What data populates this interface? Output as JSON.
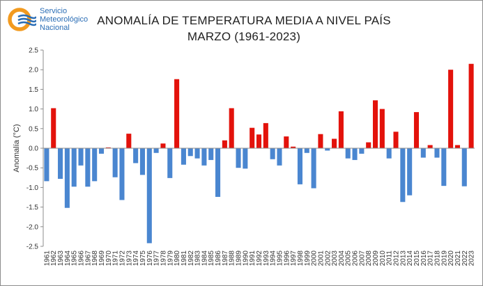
{
  "logo": {
    "text": "Servicio\nMeteorológico\nNacional",
    "colors": {
      "orange": "#f29a1f",
      "blue": "#2a6db5"
    }
  },
  "title_line1": "ANOMALÍA DE TEMPERATURA MEDIA A NIVEL PAÍS",
  "title_line2": "MARZO (1961-2023)",
  "chart_data": {
    "type": "bar",
    "title": "ANOMALÍA DE TEMPERATURA MEDIA A NIVEL PAÍS MARZO (1961-2023)",
    "xlabel": "",
    "ylabel": "Anomalía (°C)",
    "ylim": [
      -2.5,
      2.5
    ],
    "yticks": [
      "2.5",
      "2.0",
      "1.5",
      "1.0",
      "0.5",
      "0.0",
      "-0.5",
      "-1.0",
      "-1.5",
      "-2.0",
      "-2.5"
    ],
    "grid": false,
    "colors": {
      "positive": "#e3120b",
      "negative": "#4a86d0"
    },
    "categories": [
      "1961",
      "1962",
      "1963",
      "1964",
      "1965",
      "1966",
      "1967",
      "1968",
      "1969",
      "1970",
      "1971",
      "1972",
      "1973",
      "1974",
      "1975",
      "1976",
      "1977",
      "1978",
      "1979",
      "1980",
      "1981",
      "1982",
      "1983",
      "1984",
      "1985",
      "1986",
      "1987",
      "1988",
      "1989",
      "1990",
      "1991",
      "1992",
      "1993",
      "1994",
      "1995",
      "1996",
      "1997",
      "1998",
      "1999",
      "2000",
      "2001",
      "2002",
      "2003",
      "2004",
      "2005",
      "2006",
      "2007",
      "2008",
      "2009",
      "2010",
      "2011",
      "2012",
      "2013",
      "2014",
      "2015",
      "2016",
      "2017",
      "2018",
      "2019",
      "2020",
      "2021",
      "2022",
      "2023"
    ],
    "values": [
      -0.84,
      1.02,
      -0.78,
      -1.52,
      -0.98,
      -0.44,
      -0.98,
      -0.84,
      -0.14,
      0.02,
      -0.74,
      -1.32,
      0.37,
      -0.38,
      -0.68,
      -2.42,
      -0.12,
      0.12,
      -0.76,
      1.76,
      -0.42,
      -0.2,
      -0.26,
      -0.44,
      -0.3,
      -1.24,
      0.2,
      1.02,
      -0.5,
      -0.52,
      0.52,
      0.35,
      0.64,
      -0.28,
      -0.44,
      0.3,
      0.04,
      -0.92,
      -0.12,
      -1.02,
      0.36,
      -0.06,
      0.24,
      0.94,
      -0.26,
      -0.3,
      -0.14,
      0.15,
      1.22,
      1.0,
      -0.26,
      0.42,
      -1.37,
      -1.2,
      0.92,
      -0.24,
      0.08,
      -0.24,
      -0.96,
      2.0,
      0.08,
      -0.97,
      2.15
    ]
  }
}
